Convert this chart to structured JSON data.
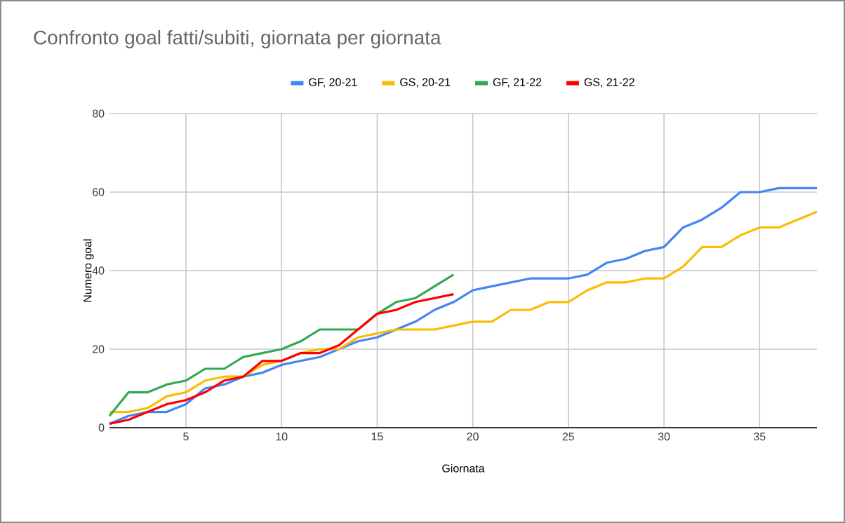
{
  "chart_data": {
    "type": "line",
    "title": "Confronto goal fatti/subiti, giornata per giornata",
    "xlabel": "Giornata",
    "ylabel": "Numero goal",
    "x": [
      1,
      2,
      3,
      4,
      5,
      6,
      7,
      8,
      9,
      10,
      11,
      12,
      13,
      14,
      15,
      16,
      17,
      18,
      19,
      20,
      21,
      22,
      23,
      24,
      25,
      26,
      27,
      28,
      29,
      30,
      31,
      32,
      33,
      34,
      35,
      36,
      37,
      38
    ],
    "series": [
      {
        "name": "GF, 20-21",
        "color": "#4285f4",
        "values": [
          1,
          3,
          4,
          4,
          6,
          10,
          11,
          13,
          14,
          16,
          17,
          18,
          20,
          22,
          23,
          25,
          27,
          30,
          32,
          35,
          36,
          37,
          38,
          38,
          38,
          39,
          42,
          43,
          45,
          46,
          51,
          53,
          56,
          60,
          60,
          61,
          61,
          61
        ]
      },
      {
        "name": "GS, 20-21",
        "color": "#fbbc04",
        "values": [
          4,
          4,
          5,
          8,
          9,
          12,
          13,
          13,
          16,
          17,
          19,
          20,
          20,
          23,
          24,
          25,
          25,
          25,
          26,
          27,
          27,
          30,
          30,
          32,
          32,
          35,
          37,
          37,
          38,
          38,
          41,
          46,
          46,
          49,
          51,
          51,
          53,
          55
        ]
      },
      {
        "name": "GF, 21-22",
        "color": "#34a853",
        "x": [
          1,
          2,
          3,
          4,
          5,
          6,
          7,
          8,
          9,
          10,
          11,
          12,
          13,
          14,
          15,
          16,
          17,
          18,
          19
        ],
        "values": [
          3,
          9,
          9,
          11,
          12,
          15,
          15,
          18,
          19,
          20,
          22,
          25,
          25,
          25,
          29,
          32,
          33,
          36,
          39
        ]
      },
      {
        "name": "GS, 21-22",
        "color": "#ff0000",
        "x": [
          1,
          2,
          3,
          4,
          5,
          6,
          7,
          8,
          9,
          10,
          11,
          12,
          13,
          14,
          15,
          16,
          17,
          18,
          19
        ],
        "values": [
          1,
          2,
          4,
          6,
          7,
          9,
          12,
          13,
          17,
          17,
          19,
          19,
          21,
          25,
          29,
          30,
          32,
          33,
          34
        ]
      }
    ],
    "xlim": [
      1,
      38
    ],
    "xticks": [
      5,
      10,
      15,
      20,
      25,
      30,
      35
    ],
    "ylim": [
      0,
      80
    ],
    "yticks": [
      0,
      20,
      40,
      60,
      80
    ],
    "grid": true,
    "legend": "top"
  }
}
